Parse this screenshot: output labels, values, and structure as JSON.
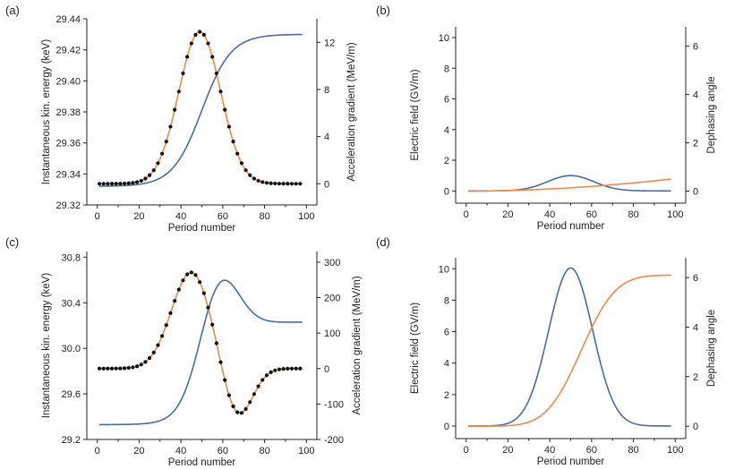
{
  "colors": {
    "blue": "#4a6aa8",
    "orange": "#f0884a",
    "dots": "#111111",
    "axis": "#222222"
  },
  "chart_data": [
    {
      "type": "line",
      "label": "(a)",
      "xlabel": "Period number",
      "ylabel_left": "Instantaneous kin. energy (keV)",
      "ylabel_right": "Acceleration gradient (MeV/m)",
      "xlim": [
        -5,
        105
      ],
      "xticks": [
        "0",
        "20",
        "40",
        "60",
        "80",
        "100"
      ],
      "ylim_left": [
        29.32,
        29.44
      ],
      "yticks_left": [
        "29.32",
        "29.34",
        "29.36",
        "29.38",
        "29.40",
        "29.42",
        "29.44"
      ],
      "ylim_right": [
        -1.8,
        14
      ],
      "yticks_right": [
        "0",
        "4",
        "8",
        "12"
      ],
      "series": [
        {
          "axis": "left",
          "color": "blue",
          "kind": "sigmoid",
          "x_range": [
            1,
            98
          ],
          "start": 29.332,
          "end": 29.43,
          "center": 50,
          "width": 7
        },
        {
          "axis": "right",
          "color": "orange",
          "kind": "gaussian",
          "x_range": [
            1,
            98
          ],
          "base": 0,
          "amp": 12.9,
          "center": 49,
          "sigma": 10,
          "dots": true
        }
      ]
    },
    {
      "type": "line",
      "label": "(b)",
      "xlabel": "Period number",
      "ylabel_left": "Electric field (GV/m)",
      "ylabel_right": "Dephasing angle",
      "xlim": [
        -5,
        105
      ],
      "xticks": [
        "0",
        "20",
        "40",
        "60",
        "80",
        "100"
      ],
      "ylim_left": [
        -0.8,
        10.7
      ],
      "yticks_left": [
        "0",
        "2",
        "4",
        "6",
        "8",
        "10"
      ],
      "ylim_right": [
        -0.5,
        6.8
      ],
      "yticks_right": [
        "0",
        "2",
        "4",
        "6"
      ],
      "series": [
        {
          "axis": "left",
          "color": "blue",
          "kind": "gaussian",
          "x_range": [
            1,
            98
          ],
          "base": 0,
          "amp": 1.0,
          "center": 50,
          "sigma": 11
        },
        {
          "axis": "right",
          "color": "orange",
          "kind": "power",
          "x_range": [
            1,
            98
          ],
          "start": 0,
          "end": 0.5,
          "exp": 1.9
        }
      ]
    },
    {
      "type": "line",
      "label": "(c)",
      "xlabel": "Period number",
      "ylabel_left": "Instantaneous kin. energy (keV)",
      "ylabel_right": "Acceleration gradient (MeV/m)",
      "xlim": [
        -5,
        105
      ],
      "xticks": [
        "0",
        "20",
        "40",
        "60",
        "80",
        "100"
      ],
      "ylim_left": [
        29.2,
        30.85
      ],
      "yticks_left": [
        "29.2",
        "29.6",
        "30.0",
        "30.4",
        "30.8"
      ],
      "ylim_right": [
        -200,
        330
      ],
      "yticks_right": [
        "-200",
        "-100",
        "0",
        "100",
        "200",
        "300"
      ],
      "series": [
        {
          "axis": "left",
          "color": "blue",
          "kind": "bump_plateau",
          "x_range": [
            1,
            98
          ],
          "start": 29.33,
          "plateau": 30.23,
          "peak": 30.75,
          "center": 58
        },
        {
          "axis": "right",
          "color": "orange",
          "kind": "doublet",
          "x_range": [
            1,
            98
          ],
          "base": 0,
          "p1": {
            "amp": 272,
            "center": 45,
            "sigma": 9.5
          },
          "p2": {
            "amp": -142,
            "center": 67,
            "sigma": 7
          },
          "dots": true
        }
      ]
    },
    {
      "type": "line",
      "label": "(d)",
      "xlabel": "Period number",
      "ylabel_left": "Electric field (GV/m)",
      "ylabel_right": "Dephasing angle",
      "xlim": [
        -5,
        105
      ],
      "xticks": [
        "0",
        "20",
        "40",
        "60",
        "80",
        "100"
      ],
      "ylim_left": [
        -0.8,
        10.7
      ],
      "yticks_left": [
        "0",
        "2",
        "4",
        "6",
        "8",
        "10"
      ],
      "ylim_right": [
        -0.5,
        6.8
      ],
      "yticks_right": [
        "0",
        "2",
        "4",
        "6"
      ],
      "series": [
        {
          "axis": "left",
          "color": "blue",
          "kind": "gaussian",
          "x_range": [
            1,
            98
          ],
          "base": 0,
          "amp": 10.05,
          "center": 50,
          "sigma": 10.5
        },
        {
          "axis": "right",
          "color": "orange",
          "kind": "erf_ramp",
          "x_range": [
            1,
            98
          ],
          "start": 0,
          "end": 6.1
        }
      ]
    }
  ]
}
